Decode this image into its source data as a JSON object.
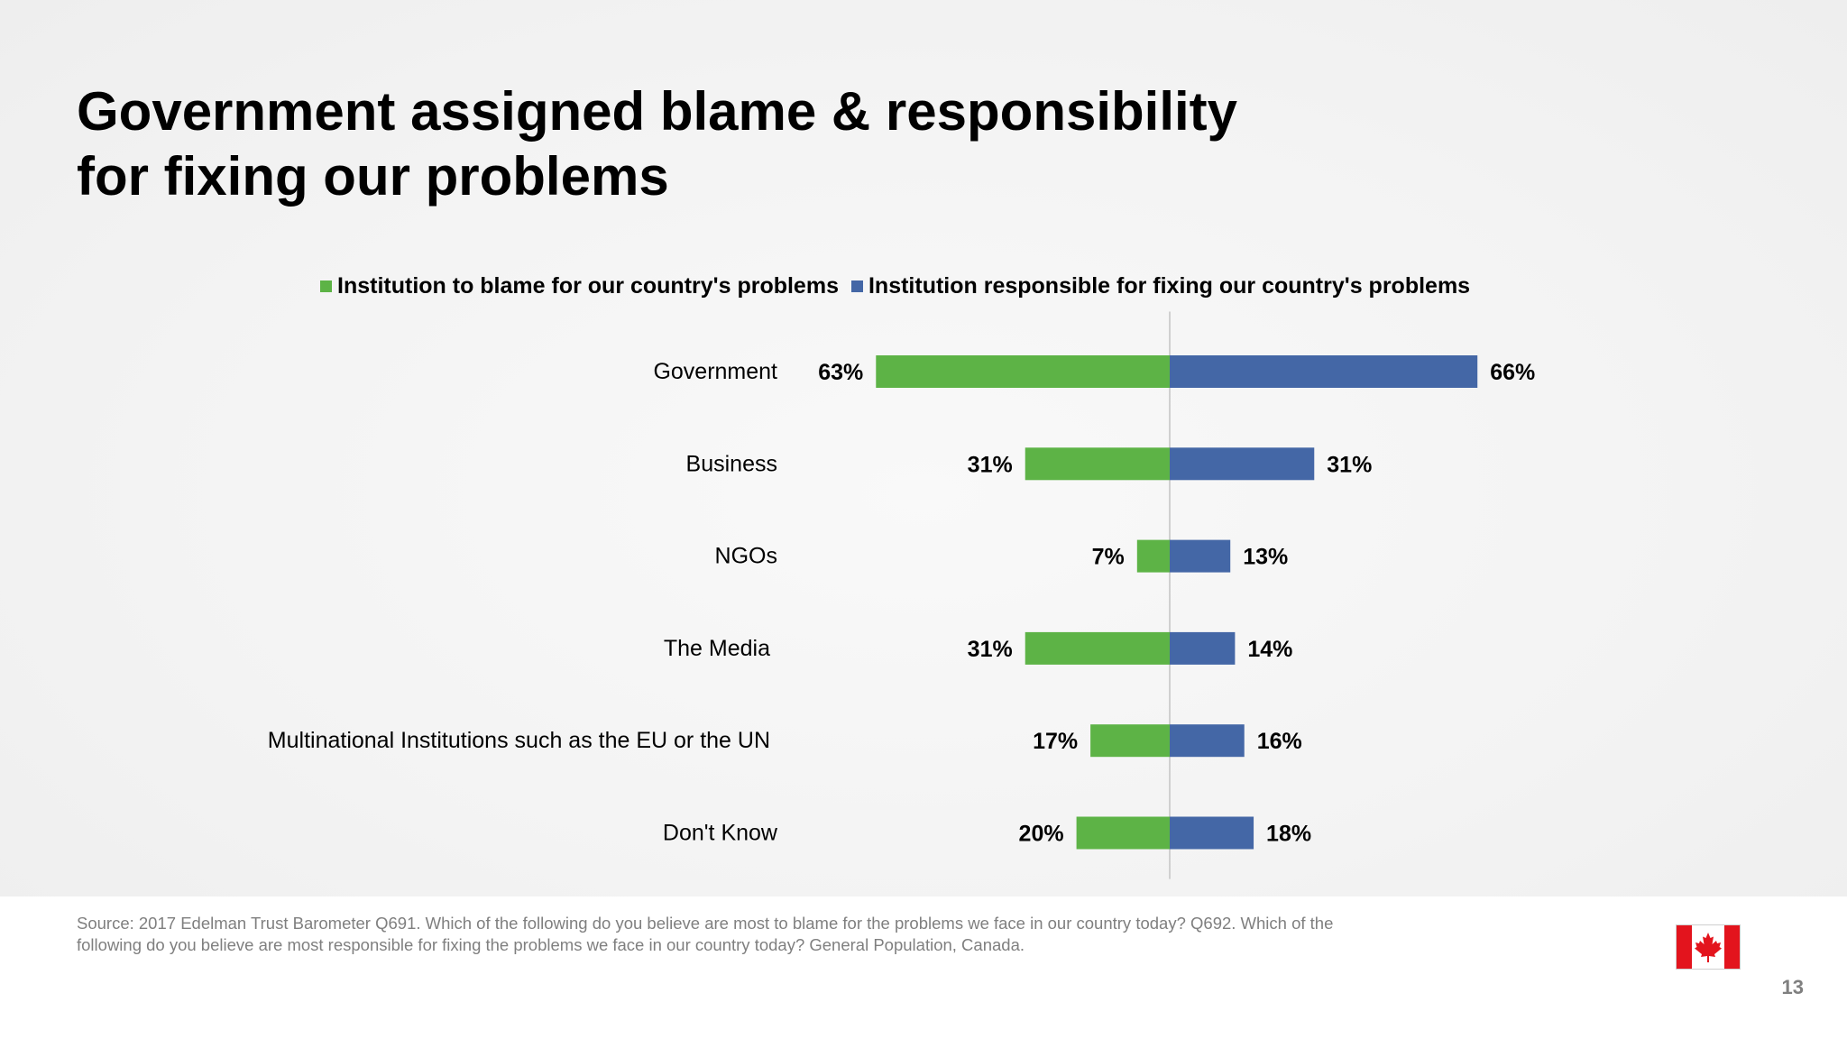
{
  "slide": {
    "title_line1": "Government assigned blame & responsibility",
    "title_line2": "for fixing our problems",
    "source": "Source: 2017 Edelman Trust Barometer Q691. Which of the following do you believe are most to blame for the problems we face in our country today? Q692. Which of the following do you believe are most responsible for fixing the problems we face in our country today? General Population, Canada.",
    "page_number": "13",
    "flag_icon": "canada-flag-icon"
  },
  "colors": {
    "blame": "#5db346",
    "fixing": "#4467a6",
    "axis": "#d0d0d0",
    "flag_red": "#e3141d"
  },
  "chart_data": {
    "type": "bar",
    "orientation": "horizontal-diverging",
    "categories": [
      "Government",
      "Business",
      "NGOs",
      "The Media",
      "Multinational Institutions such as the EU or the UN",
      "Don't Know"
    ],
    "series": [
      {
        "name": "Institution to blame for our country's problems",
        "values": [
          63,
          31,
          7,
          31,
          17,
          20
        ],
        "labels": [
          "63%",
          "31%",
          "7%",
          "31%",
          "17%",
          "20%"
        ]
      },
      {
        "name": "Institution responsible for fixing our country's problems",
        "values": [
          66,
          31,
          13,
          14,
          16,
          18
        ],
        "labels": [
          "66%",
          "31%",
          "13%",
          "14%",
          "16%",
          "18%"
        ]
      }
    ],
    "unit": "%",
    "legend_position": "top",
    "grid": false
  }
}
